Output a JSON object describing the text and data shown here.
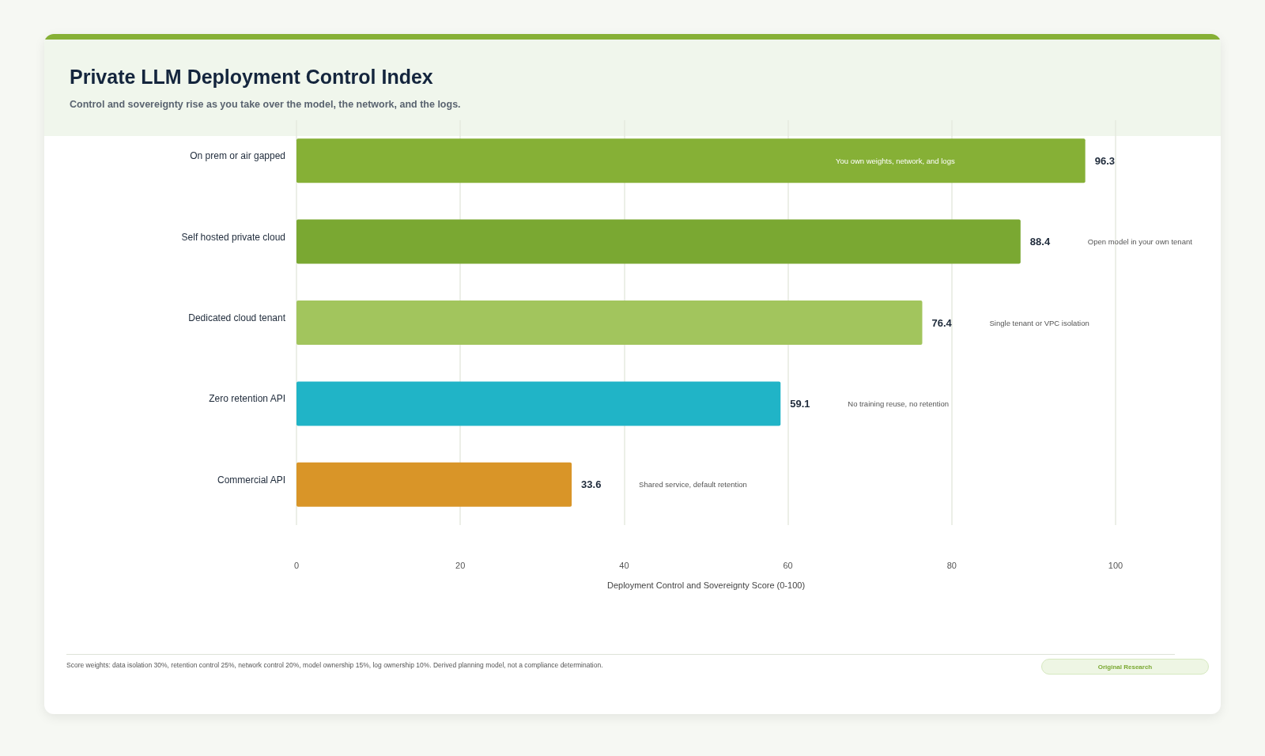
{
  "chart_data": {
    "type": "bar",
    "orientation": "horizontal",
    "title": "Private LLM Deployment Control Index",
    "subtitle": "Control and sovereignty rise as you take over the model, the network, and the logs.",
    "xlabel": "Deployment Control and Sovereignty Score (0-100)",
    "categories": [
      "On prem or air gapped",
      "Self hosted private cloud",
      "Dedicated cloud tenant",
      "Zero retention API",
      "Commercial API"
    ],
    "values": [
      96.3,
      88.4,
      76.4,
      59.1,
      33.6
    ],
    "colors": [
      "#86b036",
      "#7aa832",
      "#a2c55d",
      "#20b4c7",
      "#d99528"
    ],
    "xlim": [
      0,
      100
    ],
    "xticks": [
      0,
      20,
      40,
      60,
      80,
      100
    ],
    "grid": "x",
    "data_labels": true,
    "annotations": [
      "You own weights, network, and logs",
      "Open model in your own tenant",
      "Single tenant or VPC isolation",
      "No training reuse, no retention",
      "Shared service, default retention",
      "Score weights: data isolation 30%, retention control 25%, network control 20%, model ownership 15%, log ownership 10%. Derived planning model, not a compliance determination.",
      "Original Research"
    ]
  }
}
